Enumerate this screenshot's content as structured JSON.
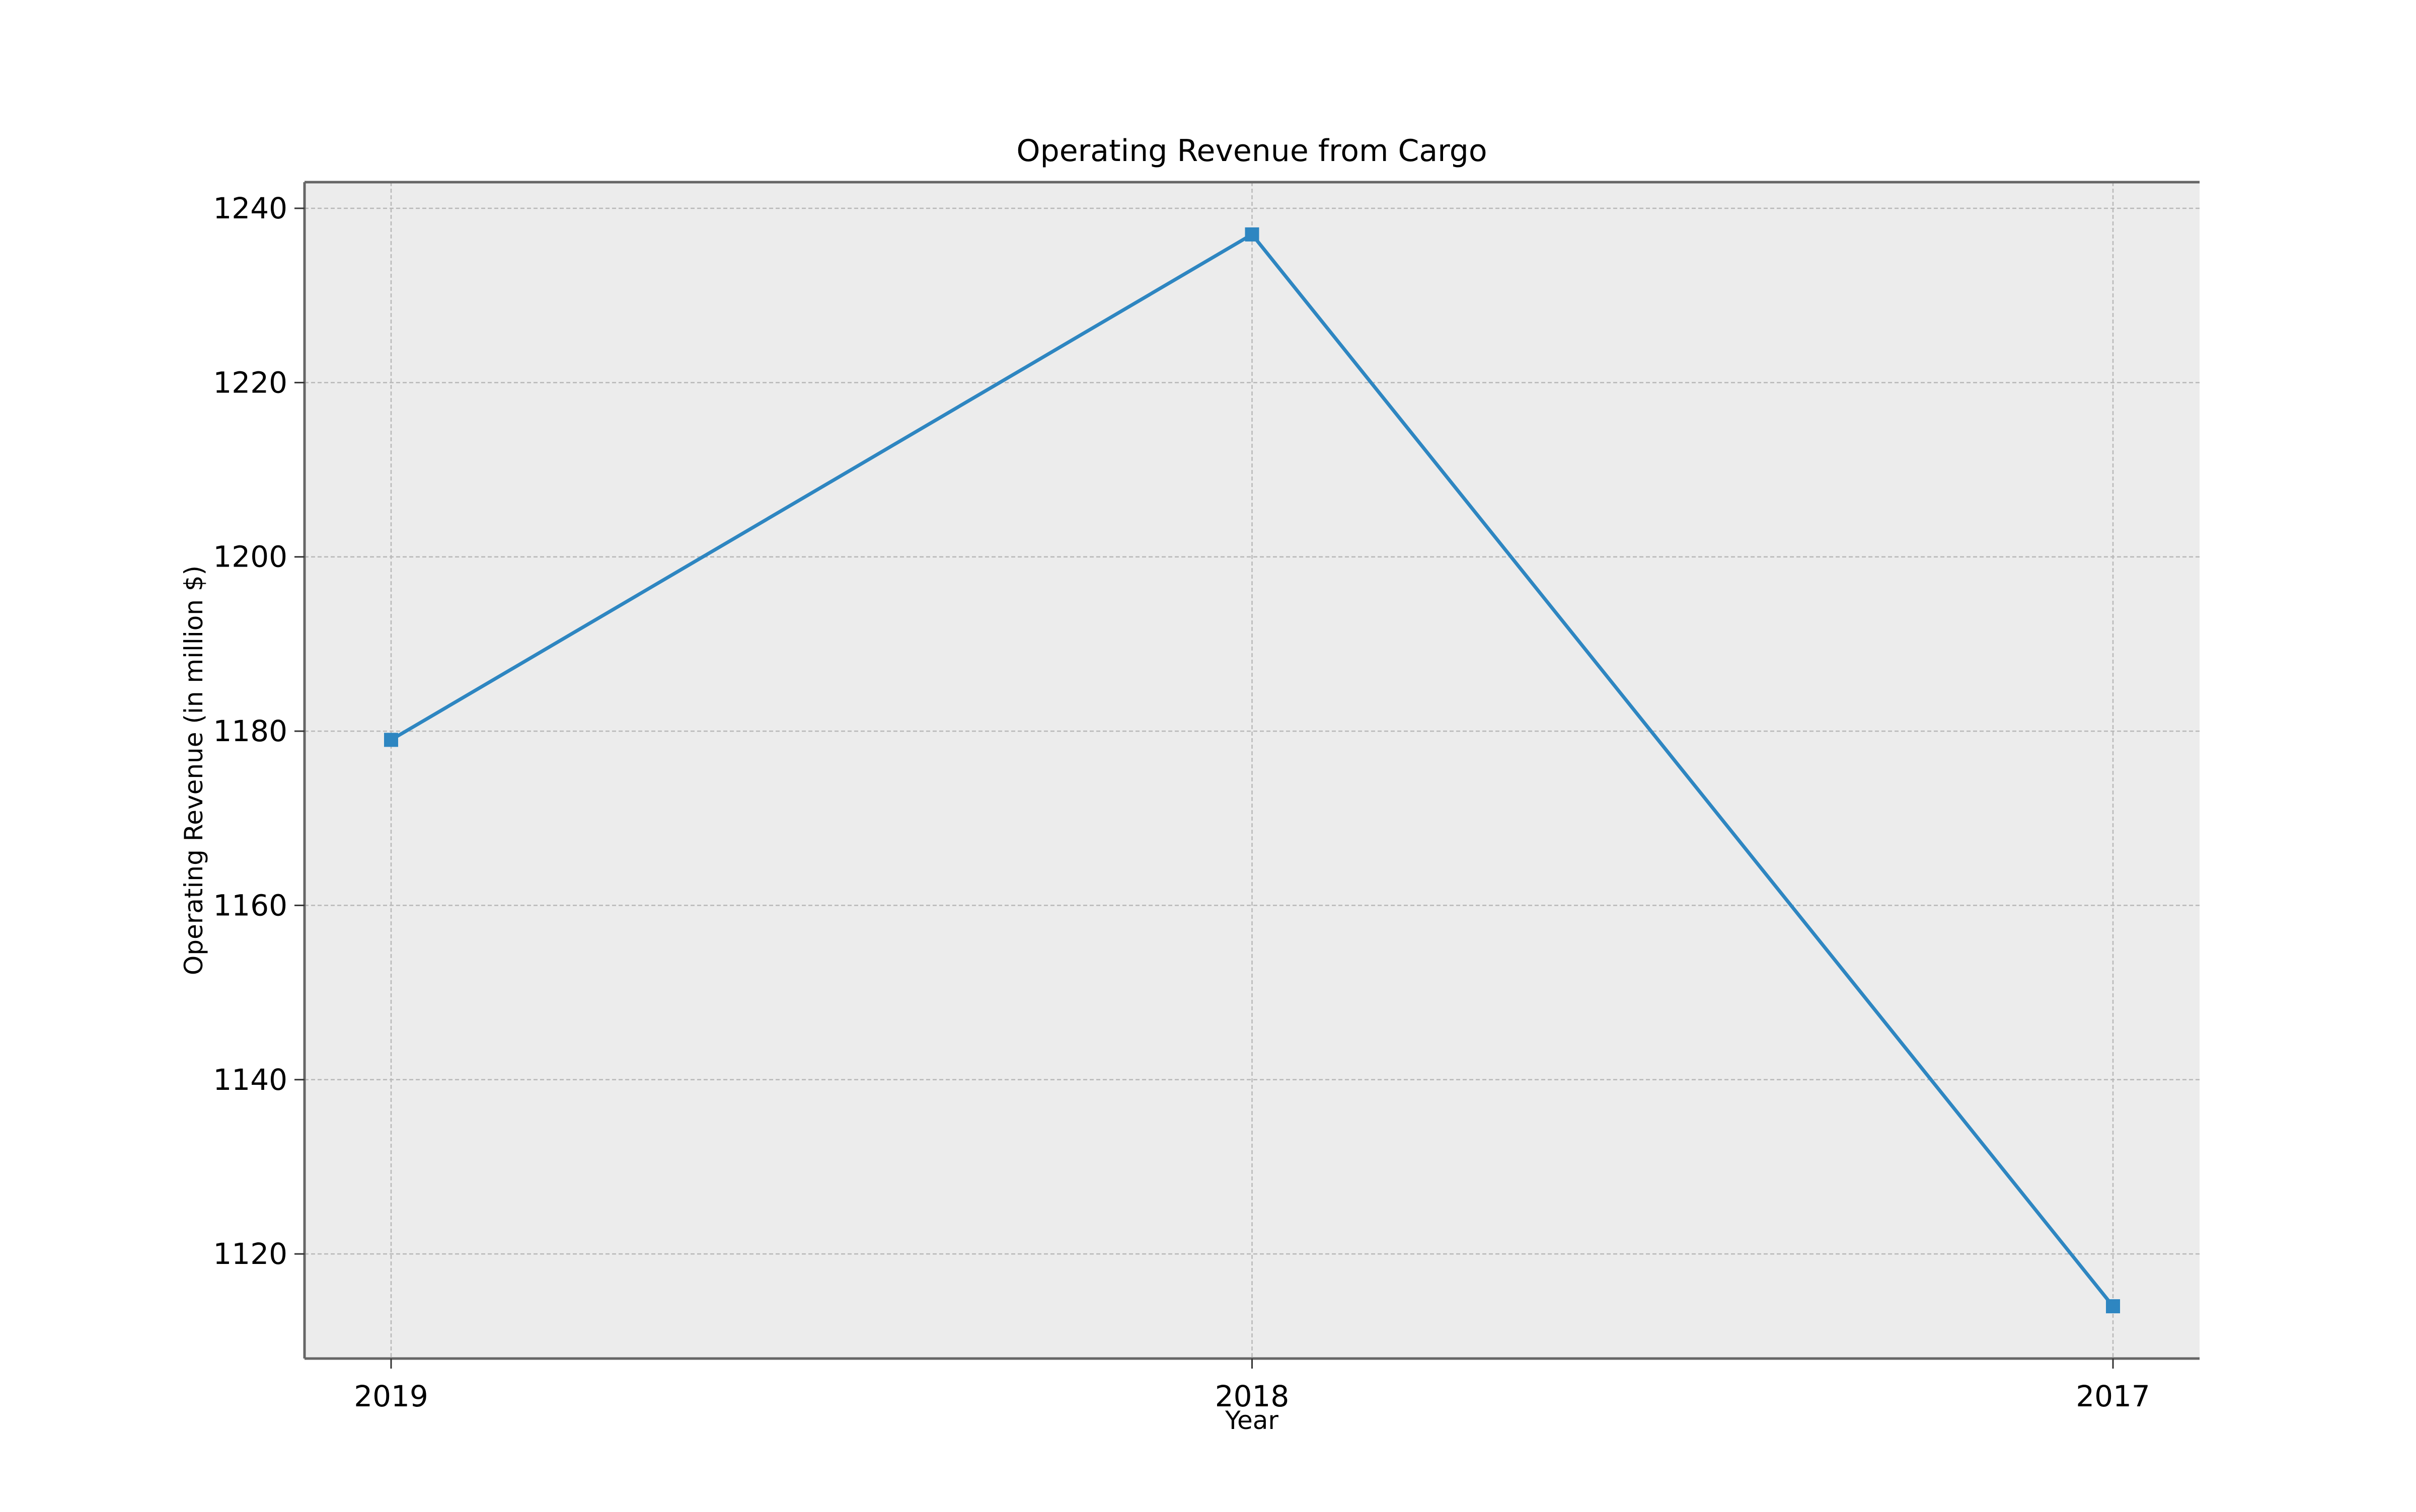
{
  "chart_data": {
    "type": "line",
    "title": "Operating Revenue from Cargo",
    "xlabel": "Year",
    "ylabel": "Operating Revenue (in million $)",
    "categories": [
      "2019",
      "2018",
      "2017"
    ],
    "series": [
      {
        "values": [
          1179,
          1237,
          1114
        ]
      }
    ],
    "ylim": [
      1108,
      1243
    ],
    "yticks": [
      1120,
      1140,
      1160,
      1180,
      1200,
      1220,
      1240
    ],
    "grid": true,
    "legend": "none",
    "marker": "square",
    "colors": {
      "line": "#2e86c1",
      "plot_background": "#ececec",
      "grid": "#b8b8b8",
      "axes": "#666666"
    }
  }
}
